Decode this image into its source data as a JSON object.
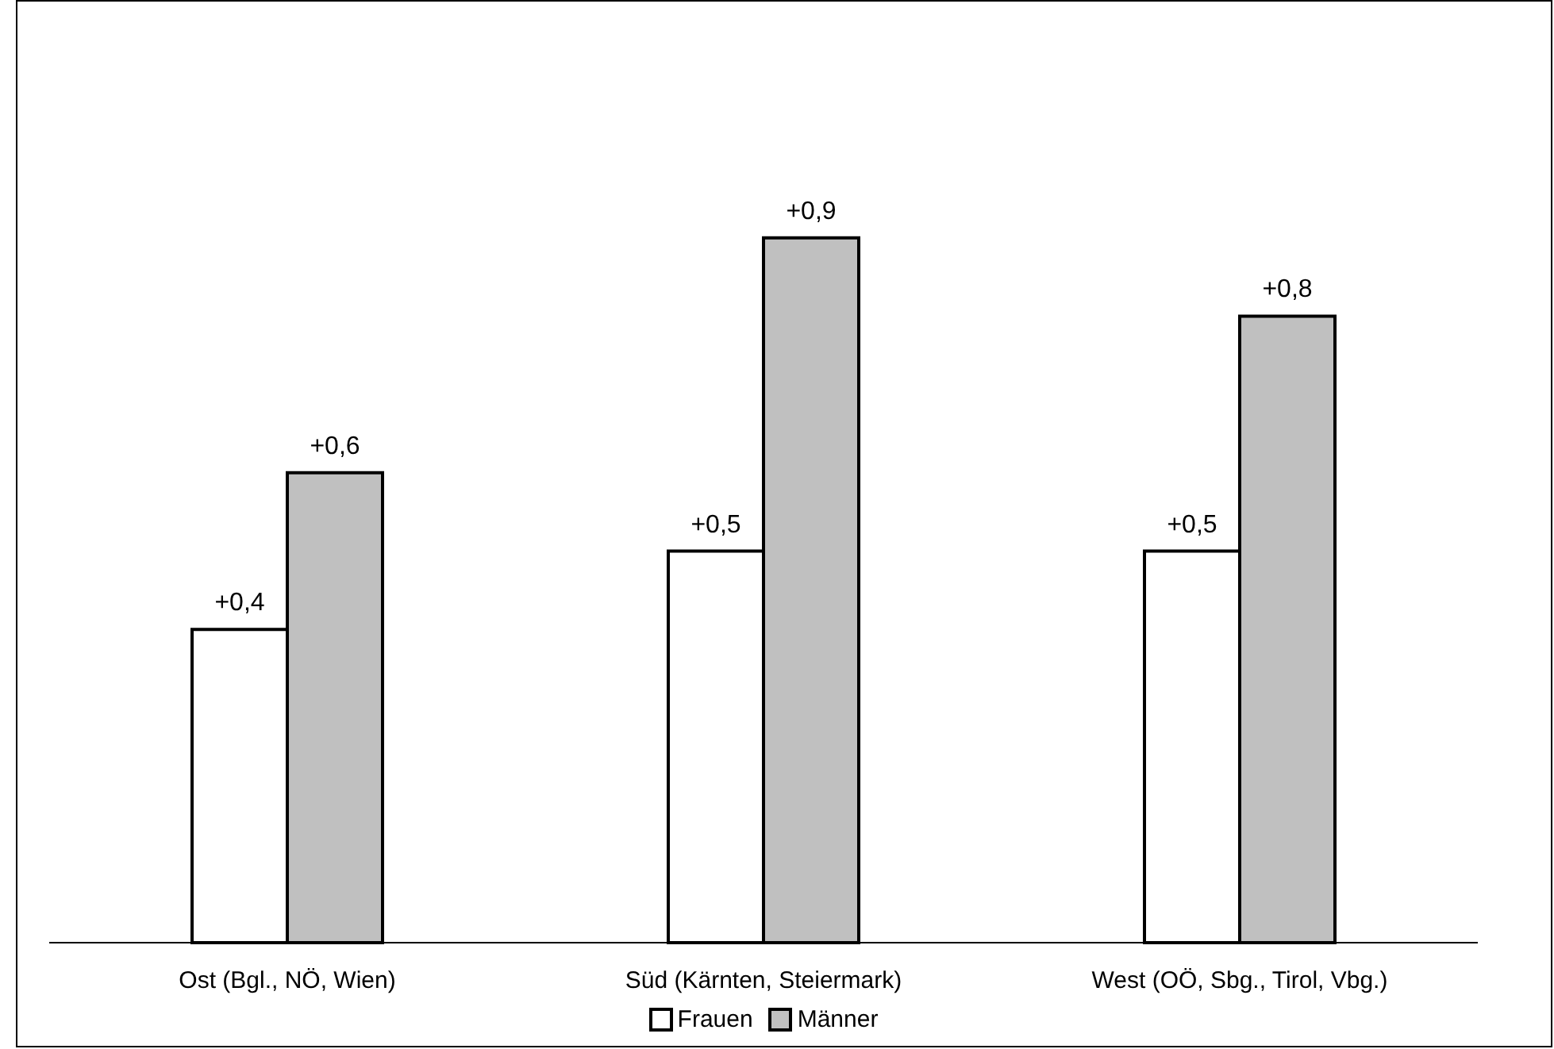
{
  "chart_data": {
    "type": "bar",
    "categories": [
      "Ost (Bgl., NÖ, Wien)",
      "Süd (Kärnten, Steiermark)",
      "West (OÖ, Sbg., Tirol, Vbg.)"
    ],
    "series": [
      {
        "name": "Frauen",
        "color": "#ffffff",
        "values": [
          0.4,
          0.5,
          0.5
        ],
        "value_labels": [
          "+0,4",
          "+0,5",
          "+0,5"
        ]
      },
      {
        "name": "Männer",
        "color": "#c0c0c0",
        "values": [
          0.6,
          0.9,
          0.8
        ],
        "value_labels": [
          "+0,6",
          "+0,9",
          "+0,8"
        ]
      }
    ],
    "legend": "bottom",
    "grid": false
  }
}
